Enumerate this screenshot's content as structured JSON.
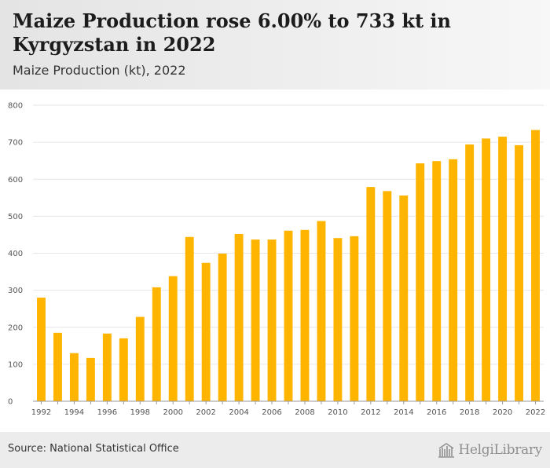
{
  "header": {
    "title": "Maize Production rose 6.00% to 733 kt in Kyrgyzstan in 2022",
    "subtitle": "Maize Production (kt), 2022"
  },
  "footer": {
    "source": "Source: National Statistical Office",
    "logo_text": "HelgiLibrary",
    "logo_icon": "library-building-icon"
  },
  "colors": {
    "bar": "#FFB400",
    "header_bg": "#E9E9E9",
    "footer_bg": "#ECECEC"
  },
  "chart_data": {
    "type": "bar",
    "x": [
      1992,
      1993,
      1994,
      1995,
      1996,
      1997,
      1998,
      1999,
      2000,
      2001,
      2002,
      2003,
      2004,
      2005,
      2006,
      2007,
      2008,
      2009,
      2010,
      2011,
      2012,
      2013,
      2014,
      2015,
      2016,
      2017,
      2018,
      2019,
      2020,
      2021,
      2022
    ],
    "values": [
      280,
      185,
      130,
      117,
      183,
      170,
      228,
      308,
      338,
      444,
      374,
      399,
      452,
      437,
      437,
      461,
      463,
      487,
      441,
      446,
      579,
      568,
      556,
      643,
      649,
      654,
      694,
      710,
      715,
      692,
      733
    ],
    "x_tick_labels": [
      "1992",
      "1994",
      "1996",
      "1998",
      "2000",
      "2002",
      "2004",
      "2006",
      "2008",
      "2010",
      "2012",
      "2014",
      "2016",
      "2018",
      "2020",
      "2022"
    ],
    "y_ticks": [
      0,
      100,
      200,
      300,
      400,
      500,
      600,
      700,
      800
    ],
    "ylim": [
      0,
      800
    ],
    "grid": true,
    "legend": "none",
    "title": "Maize Production rose 6.00% to 733 kt in Kyrgyzstan in 2022",
    "subtitle": "Maize Production (kt), 2022",
    "xlabel": "",
    "ylabel": ""
  }
}
